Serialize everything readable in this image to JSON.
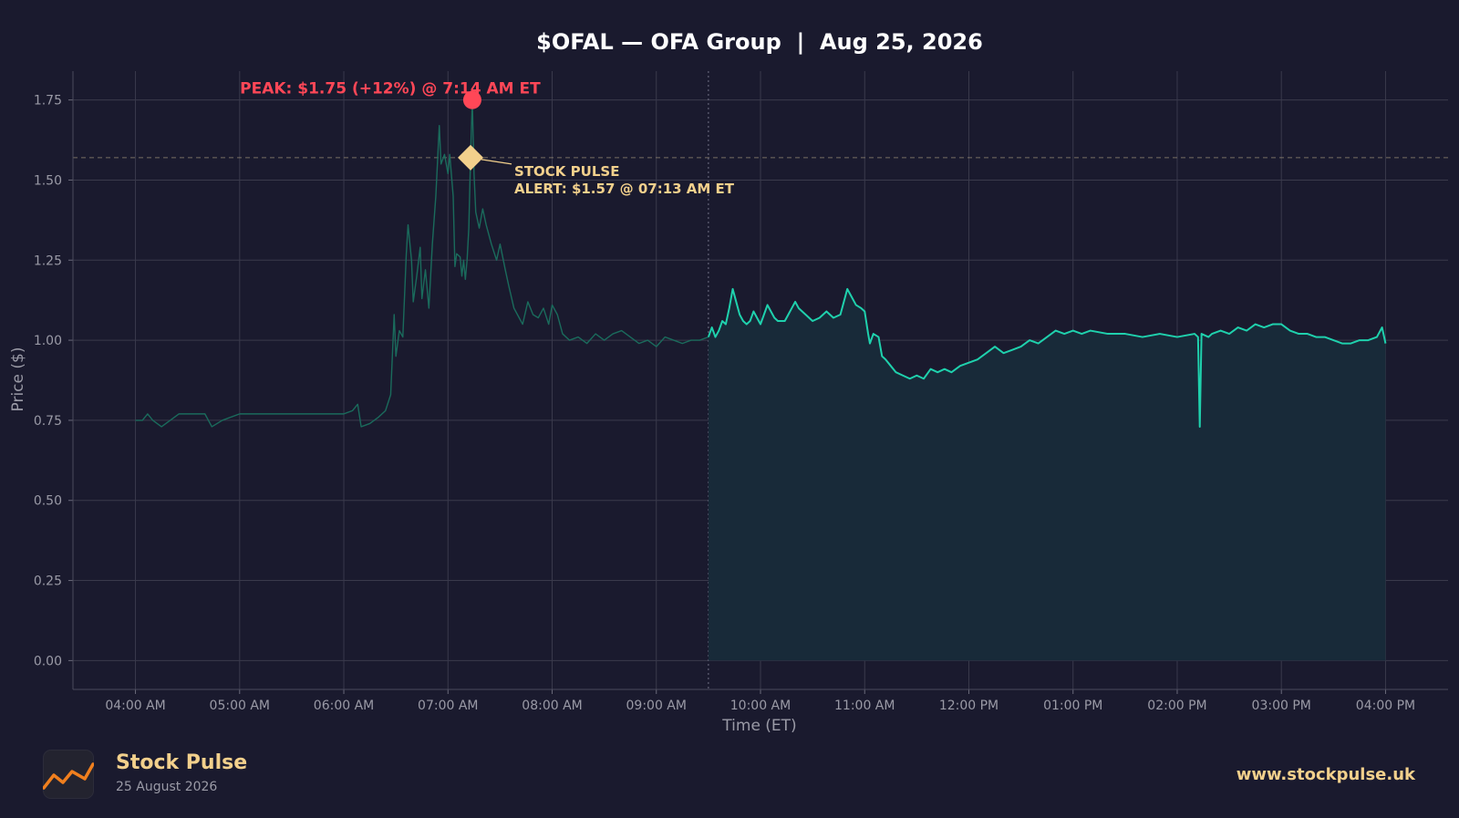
{
  "colors": {
    "background": "#1a1a2e",
    "line": "#1fd1ad",
    "line_premarket": "#1a6b5c",
    "fill": "#182a39",
    "grid": "#3a3a4c",
    "peak": "#ff4757",
    "alert": "#f2d08c",
    "text": "#e6e6e6",
    "muted": "#9a9aa6"
  },
  "footer": {
    "brand": "Stock Pulse",
    "date": "25 August 2026",
    "url": "www.stockpulse.uk",
    "logo_icon": "stock-pulse-chart-icon"
  },
  "chart_data": {
    "type": "line",
    "title": "$OFAL — OFA Group  |  Aug 25, 2026",
    "xlabel": "Time (ET)",
    "ylabel": "Price ($)",
    "grid": true,
    "ylim": [
      -0.09,
      1.84
    ],
    "xlim": [
      "03:24",
      "16:36"
    ],
    "x_ticks": [
      "04:00 AM",
      "05:00 AM",
      "06:00 AM",
      "07:00 AM",
      "08:00 AM",
      "09:00 AM",
      "10:00 AM",
      "11:00 AM",
      "12:00 PM",
      "01:00 PM",
      "02:00 PM",
      "03:00 PM",
      "04:00 PM"
    ],
    "y_ticks": [
      "0.00",
      "0.25",
      "0.50",
      "0.75",
      "1.00",
      "1.25",
      "1.50",
      "1.75"
    ],
    "market_open": "09:30",
    "alert_level": 1.57,
    "peak": {
      "time": "07:14",
      "value": 1.75,
      "label": "PEAK: $1.75 (+12%) @ 7:14 AM ET"
    },
    "alert": {
      "time": "07:13",
      "value": 1.57,
      "label_line1": "STOCK PULSE",
      "label_line2": "ALERT: $1.57 @ 07:13 AM ET"
    },
    "series": [
      {
        "session": "premarket",
        "points": [
          [
            "04:00",
            0.75
          ],
          [
            "04:04",
            0.75
          ],
          [
            "04:07",
            0.77
          ],
          [
            "04:10",
            0.75
          ],
          [
            "04:15",
            0.73
          ],
          [
            "04:20",
            0.75
          ],
          [
            "04:25",
            0.77
          ],
          [
            "04:30",
            0.77
          ],
          [
            "04:35",
            0.77
          ],
          [
            "04:40",
            0.77
          ],
          [
            "04:44",
            0.73
          ],
          [
            "04:50",
            0.75
          ],
          [
            "04:55",
            0.76
          ],
          [
            "05:00",
            0.77
          ],
          [
            "05:30",
            0.77
          ],
          [
            "06:00",
            0.77
          ],
          [
            "06:05",
            0.78
          ],
          [
            "06:08",
            0.8
          ],
          [
            "06:10",
            0.73
          ],
          [
            "06:15",
            0.74
          ],
          [
            "06:20",
            0.76
          ],
          [
            "06:24",
            0.78
          ],
          [
            "06:27",
            0.83
          ],
          [
            "06:29",
            1.08
          ],
          [
            "06:30",
            0.95
          ],
          [
            "06:32",
            1.03
          ],
          [
            "06:34",
            1.01
          ],
          [
            "06:36",
            1.27
          ],
          [
            "06:37",
            1.36
          ],
          [
            "06:39",
            1.25
          ],
          [
            "06:40",
            1.12
          ],
          [
            "06:42",
            1.2
          ],
          [
            "06:44",
            1.29
          ],
          [
            "06:45",
            1.13
          ],
          [
            "06:47",
            1.22
          ],
          [
            "06:49",
            1.1
          ],
          [
            "06:51",
            1.3
          ],
          [
            "06:53",
            1.45
          ],
          [
            "06:55",
            1.67
          ],
          [
            "06:56",
            1.55
          ],
          [
            "06:58",
            1.58
          ],
          [
            "07:00",
            1.52
          ],
          [
            "07:01",
            1.58
          ],
          [
            "07:03",
            1.45
          ],
          [
            "07:04",
            1.23
          ],
          [
            "07:05",
            1.27
          ],
          [
            "07:07",
            1.26
          ],
          [
            "07:08",
            1.2
          ],
          [
            "07:09",
            1.25
          ],
          [
            "07:10",
            1.19
          ],
          [
            "07:11",
            1.25
          ],
          [
            "07:12",
            1.35
          ],
          [
            "07:13",
            1.57
          ],
          [
            "07:14",
            1.75
          ],
          [
            "07:15",
            1.52
          ],
          [
            "07:16",
            1.4
          ],
          [
            "07:18",
            1.35
          ],
          [
            "07:20",
            1.41
          ],
          [
            "07:22",
            1.36
          ],
          [
            "07:25",
            1.3
          ],
          [
            "07:28",
            1.25
          ],
          [
            "07:30",
            1.3
          ],
          [
            "07:33",
            1.22
          ],
          [
            "07:35",
            1.17
          ],
          [
            "07:38",
            1.1
          ],
          [
            "07:40",
            1.08
          ],
          [
            "07:43",
            1.05
          ],
          [
            "07:46",
            1.12
          ],
          [
            "07:49",
            1.08
          ],
          [
            "07:52",
            1.07
          ],
          [
            "07:55",
            1.1
          ],
          [
            "07:58",
            1.05
          ],
          [
            "08:00",
            1.11
          ],
          [
            "08:03",
            1.08
          ],
          [
            "08:06",
            1.02
          ],
          [
            "08:10",
            1.0
          ],
          [
            "08:15",
            1.01
          ],
          [
            "08:20",
            0.99
          ],
          [
            "08:25",
            1.02
          ],
          [
            "08:30",
            1.0
          ],
          [
            "08:35",
            1.02
          ],
          [
            "08:40",
            1.03
          ],
          [
            "08:45",
            1.01
          ],
          [
            "08:50",
            0.99
          ],
          [
            "08:55",
            1.0
          ],
          [
            "09:00",
            0.98
          ],
          [
            "09:05",
            1.01
          ],
          [
            "09:10",
            1.0
          ],
          [
            "09:15",
            0.99
          ],
          [
            "09:20",
            1.0
          ],
          [
            "09:25",
            1.0
          ],
          [
            "09:30",
            1.01
          ]
        ]
      },
      {
        "session": "regular",
        "points": [
          [
            "09:30",
            1.01
          ],
          [
            "09:32",
            1.04
          ],
          [
            "09:34",
            1.01
          ],
          [
            "09:36",
            1.03
          ],
          [
            "09:38",
            1.06
          ],
          [
            "09:40",
            1.05
          ],
          [
            "09:42",
            1.1
          ],
          [
            "09:44",
            1.16
          ],
          [
            "09:46",
            1.12
          ],
          [
            "09:48",
            1.08
          ],
          [
            "09:50",
            1.06
          ],
          [
            "09:52",
            1.05
          ],
          [
            "09:54",
            1.06
          ],
          [
            "09:56",
            1.09
          ],
          [
            "09:58",
            1.07
          ],
          [
            "10:00",
            1.05
          ],
          [
            "10:02",
            1.08
          ],
          [
            "10:04",
            1.11
          ],
          [
            "10:06",
            1.09
          ],
          [
            "10:08",
            1.07
          ],
          [
            "10:10",
            1.06
          ],
          [
            "10:14",
            1.06
          ],
          [
            "10:16",
            1.08
          ],
          [
            "10:18",
            1.1
          ],
          [
            "10:20",
            1.12
          ],
          [
            "10:22",
            1.1
          ],
          [
            "10:26",
            1.08
          ],
          [
            "10:30",
            1.06
          ],
          [
            "10:34",
            1.07
          ],
          [
            "10:38",
            1.09
          ],
          [
            "10:42",
            1.07
          ],
          [
            "10:46",
            1.08
          ],
          [
            "10:48",
            1.12
          ],
          [
            "10:50",
            1.16
          ],
          [
            "10:52",
            1.14
          ],
          [
            "10:55",
            1.11
          ],
          [
            "10:58",
            1.1
          ],
          [
            "11:00",
            1.09
          ],
          [
            "11:02",
            1.02
          ],
          [
            "11:03",
            0.99
          ],
          [
            "11:05",
            1.02
          ],
          [
            "11:08",
            1.01
          ],
          [
            "11:10",
            0.95
          ],
          [
            "11:12",
            0.94
          ],
          [
            "11:15",
            0.92
          ],
          [
            "11:18",
            0.9
          ],
          [
            "11:22",
            0.89
          ],
          [
            "11:26",
            0.88
          ],
          [
            "11:30",
            0.89
          ],
          [
            "11:34",
            0.88
          ],
          [
            "11:38",
            0.91
          ],
          [
            "11:42",
            0.9
          ],
          [
            "11:46",
            0.91
          ],
          [
            "11:50",
            0.9
          ],
          [
            "11:55",
            0.92
          ],
          [
            "12:00",
            0.93
          ],
          [
            "12:05",
            0.94
          ],
          [
            "12:10",
            0.96
          ],
          [
            "12:15",
            0.98
          ],
          [
            "12:20",
            0.96
          ],
          [
            "12:25",
            0.97
          ],
          [
            "12:30",
            0.98
          ],
          [
            "12:35",
            1.0
          ],
          [
            "12:40",
            0.99
          ],
          [
            "12:45",
            1.01
          ],
          [
            "12:50",
            1.03
          ],
          [
            "12:55",
            1.02
          ],
          [
            "13:00",
            1.03
          ],
          [
            "13:05",
            1.02
          ],
          [
            "13:10",
            1.03
          ],
          [
            "13:20",
            1.02
          ],
          [
            "13:30",
            1.02
          ],
          [
            "13:40",
            1.01
          ],
          [
            "13:50",
            1.02
          ],
          [
            "14:00",
            1.01
          ],
          [
            "14:10",
            1.02
          ],
          [
            "14:12",
            1.01
          ],
          [
            "14:13",
            0.73
          ],
          [
            "14:14",
            1.02
          ],
          [
            "14:18",
            1.01
          ],
          [
            "14:20",
            1.02
          ],
          [
            "14:25",
            1.03
          ],
          [
            "14:30",
            1.02
          ],
          [
            "14:35",
            1.04
          ],
          [
            "14:40",
            1.03
          ],
          [
            "14:45",
            1.05
          ],
          [
            "14:50",
            1.04
          ],
          [
            "14:55",
            1.05
          ],
          [
            "15:00",
            1.05
          ],
          [
            "15:05",
            1.03
          ],
          [
            "15:10",
            1.02
          ],
          [
            "15:15",
            1.02
          ],
          [
            "15:20",
            1.01
          ],
          [
            "15:25",
            1.01
          ],
          [
            "15:30",
            1.0
          ],
          [
            "15:35",
            0.99
          ],
          [
            "15:40",
            0.99
          ],
          [
            "15:45",
            1.0
          ],
          [
            "15:50",
            1.0
          ],
          [
            "15:55",
            1.01
          ],
          [
            "15:58",
            1.04
          ],
          [
            "16:00",
            0.99
          ]
        ]
      }
    ]
  }
}
